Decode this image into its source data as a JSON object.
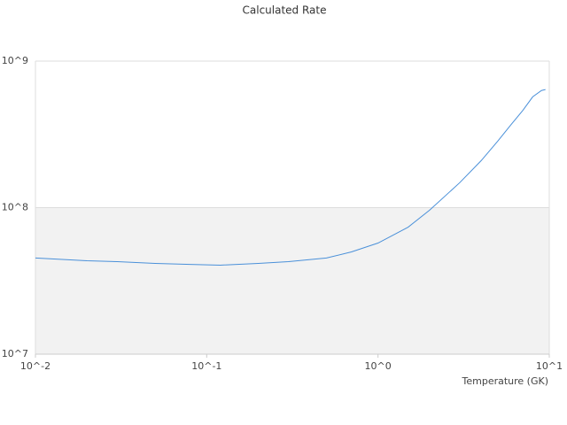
{
  "chart_data": {
    "type": "line",
    "title": "Calculated Rate",
    "x_label": "Temperature (GK)",
    "xscale": "log",
    "yscale": "log",
    "x": [
      0.01,
      0.02,
      0.03,
      0.05,
      0.08,
      0.12,
      0.2,
      0.3,
      0.5,
      0.7,
      1.0,
      1.5,
      2,
      3,
      4,
      5,
      6,
      7,
      8,
      9,
      9.5
    ],
    "values": [
      45300000,
      43400000,
      42800000,
      41600000,
      41000000,
      40500000,
      41600000,
      42800000,
      45300000,
      49900000,
      57300000,
      73600000,
      96000000,
      148000000,
      209000000,
      284000000,
      370000000,
      460000000,
      570000000,
      630000000,
      640000000
    ],
    "color": "#4a90d9",
    "xlim": [
      0.01,
      10
    ],
    "xticks": [
      {
        "value": 0.01,
        "label": "10^-2"
      },
      {
        "value": 0.1,
        "label": "10^-1"
      },
      {
        "value": 1,
        "label": "10^0"
      },
      {
        "value": 10,
        "label": "10^1"
      }
    ],
    "ylim": [
      10000000,
      1000000000
    ],
    "yticks": [
      {
        "value": 10000000,
        "label": "10^7"
      },
      {
        "value": 100000000,
        "label": "10^8"
      },
      {
        "value": 1000000000,
        "label": "10^9"
      }
    ],
    "grid": true,
    "band_color": "#f2f2f2"
  }
}
